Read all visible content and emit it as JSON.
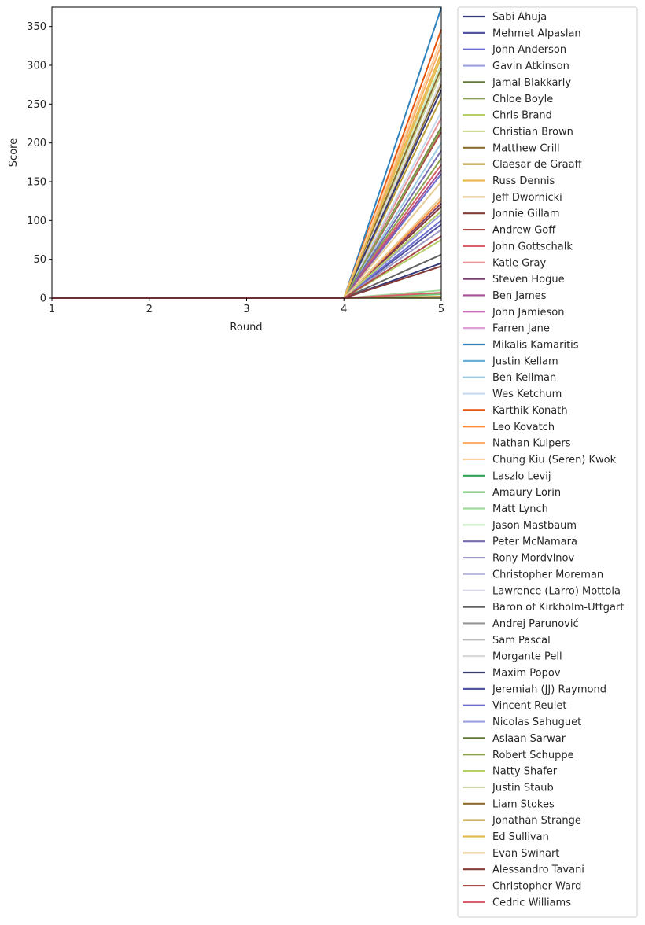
{
  "chart_data": {
    "type": "line",
    "title": "",
    "xlabel": "Round",
    "ylabel": "Score",
    "x": [
      1,
      2,
      3,
      4,
      5
    ],
    "xlim": [
      1,
      5
    ],
    "ylim": [
      0,
      375
    ],
    "xticks": [
      "1",
      "2",
      "3",
      "4",
      "5"
    ],
    "yticks": [
      "0",
      "50",
      "100",
      "150",
      "200",
      "250",
      "300",
      "350"
    ],
    "ytick_values": [
      0,
      50,
      100,
      150,
      200,
      250,
      300,
      350
    ],
    "grid": false,
    "legend_position": "outside-right",
    "series": [
      {
        "name": "Sabi Ahuja",
        "color": "#393b79",
        "values": [
          0,
          0,
          0,
          0,
          45
        ]
      },
      {
        "name": "Mehmet Alpaslan",
        "color": "#5254a3",
        "values": [
          0,
          0,
          0,
          0,
          95
        ]
      },
      {
        "name": "John Anderson",
        "color": "#6b6ecf",
        "values": [
          0,
          0,
          0,
          0,
          160
        ]
      },
      {
        "name": "Gavin Atkinson",
        "color": "#9c9ede",
        "values": [
          0,
          0,
          0,
          0,
          108
        ]
      },
      {
        "name": "Jamal Blakkarly",
        "color": "#637939",
        "values": [
          0,
          0,
          0,
          0,
          220
        ]
      },
      {
        "name": "Chloe Boyle",
        "color": "#8ca252",
        "values": [
          0,
          0,
          0,
          0,
          180
        ]
      },
      {
        "name": "Chris Brand",
        "color": "#b5cf6b",
        "values": [
          0,
          0,
          0,
          0,
          75
        ]
      },
      {
        "name": "Christian Brown",
        "color": "#cedb9c",
        "values": [
          0,
          0,
          0,
          0,
          290
        ]
      },
      {
        "name": "Matthew Crill",
        "color": "#8c6d31",
        "values": [
          0,
          0,
          0,
          0,
          275
        ]
      },
      {
        "name": "Claesar de Graaff",
        "color": "#bd9e39",
        "values": [
          0,
          0,
          0,
          0,
          258
        ]
      },
      {
        "name": "Russ Dennis",
        "color": "#e7ba52",
        "values": [
          0,
          0,
          0,
          0,
          316
        ]
      },
      {
        "name": "Jeff Dwornicki",
        "color": "#e7cb94",
        "values": [
          0,
          0,
          0,
          0,
          150
        ]
      },
      {
        "name": "Jonnie Gillam",
        "color": "#843c39",
        "values": [
          0,
          0,
          0,
          0,
          118
        ]
      },
      {
        "name": "Andrew Goff",
        "color": "#ad494a",
        "values": [
          0,
          0,
          0,
          0,
          214
        ]
      },
      {
        "name": "John Gottschalk",
        "color": "#d6616b",
        "values": [
          0,
          0,
          0,
          0,
          172
        ]
      },
      {
        "name": "Katie Gray",
        "color": "#e7969c",
        "values": [
          0,
          0,
          0,
          0,
          232
        ]
      },
      {
        "name": "Steven Hogue",
        "color": "#7b4173",
        "values": [
          0,
          0,
          0,
          0,
          122
        ]
      },
      {
        "name": "Ben James",
        "color": "#a55194",
        "values": [
          0,
          0,
          0,
          0,
          165
        ]
      },
      {
        "name": "John Jamieson",
        "color": "#ce6dbd",
        "values": [
          0,
          0,
          0,
          0,
          0
        ]
      },
      {
        "name": "Farren Jane",
        "color": "#de9ed6",
        "values": [
          0,
          0,
          0,
          0,
          0
        ]
      },
      {
        "name": "Mikalis Kamaritis",
        "color": "#3182bd",
        "values": [
          0,
          0,
          0,
          0,
          374
        ]
      },
      {
        "name": "Justin Kellam",
        "color": "#6baed6",
        "values": [
          0,
          0,
          0,
          0,
          0
        ]
      },
      {
        "name": "Ben Kellman",
        "color": "#9ecae1",
        "values": [
          0,
          0,
          0,
          0,
          200
        ]
      },
      {
        "name": "Wes Ketchum",
        "color": "#c6dbef",
        "values": [
          0,
          0,
          0,
          0,
          240
        ]
      },
      {
        "name": "Karthik Konath",
        "color": "#e6550d",
        "values": [
          0,
          0,
          0,
          0,
          346
        ]
      },
      {
        "name": "Leo Kovatch",
        "color": "#fd8d3c",
        "values": [
          0,
          0,
          0,
          0,
          126
        ]
      },
      {
        "name": "Nathan Kuipers",
        "color": "#fdae6b",
        "values": [
          0,
          0,
          0,
          0,
          326
        ]
      },
      {
        "name": "Chung Kiu (Seren) Kwok",
        "color": "#fdd0a2",
        "values": [
          0,
          0,
          0,
          0,
          334
        ]
      },
      {
        "name": "Laszlo Levij",
        "color": "#31a354",
        "values": [
          0,
          0,
          0,
          0,
          0
        ]
      },
      {
        "name": "Amaury Lorin",
        "color": "#74c476",
        "values": [
          0,
          0,
          0,
          0,
          5
        ]
      },
      {
        "name": "Matt Lynch",
        "color": "#a1d99b",
        "values": [
          0,
          0,
          0,
          0,
          10
        ]
      },
      {
        "name": "Jason Mastbaum",
        "color": "#c7e9c0",
        "values": [
          0,
          0,
          0,
          0,
          302
        ]
      },
      {
        "name": "Peter McNamara",
        "color": "#756bb1",
        "values": [
          0,
          0,
          0,
          0,
          190
        ]
      },
      {
        "name": "Rony Mordvinov",
        "color": "#9e9ac8",
        "values": [
          0,
          0,
          0,
          0,
          88
        ]
      },
      {
        "name": "Christopher Moreman",
        "color": "#bcbddc",
        "values": [
          0,
          0,
          0,
          0,
          0
        ]
      },
      {
        "name": "Lawrence (Larro) Mottola",
        "color": "#dadaeb",
        "values": [
          0,
          0,
          0,
          0,
          0
        ]
      },
      {
        "name": "Baron of Kirkholm-Uttgart",
        "color": "#636363",
        "values": [
          0,
          0,
          0,
          0,
          56
        ]
      },
      {
        "name": "Andrej Parunović",
        "color": "#969696",
        "values": [
          0,
          0,
          0,
          0,
          0
        ]
      },
      {
        "name": "Sam Pascal",
        "color": "#bdbdbd",
        "values": [
          0,
          0,
          0,
          0,
          0
        ]
      },
      {
        "name": "Morgante Pell",
        "color": "#d9d9d9",
        "values": [
          0,
          0,
          0,
          0,
          280
        ]
      },
      {
        "name": "Maxim Popov",
        "color": "#393b79",
        "values": [
          0,
          0,
          0,
          0,
          268
        ]
      },
      {
        "name": "Jeremiah (JJ) Raymond",
        "color": "#5254a3",
        "values": [
          0,
          0,
          0,
          0,
          0
        ]
      },
      {
        "name": "Vincent Reulet",
        "color": "#6b6ecf",
        "values": [
          0,
          0,
          0,
          0,
          100
        ]
      },
      {
        "name": "Nicolas Sahuguet",
        "color": "#9c9ede",
        "values": [
          0,
          0,
          0,
          0,
          0
        ]
      },
      {
        "name": "Aslaan Sarwar",
        "color": "#637939",
        "values": [
          0,
          0,
          0,
          0,
          0
        ]
      },
      {
        "name": "Robert Schuppe",
        "color": "#8ca252",
        "values": [
          0,
          0,
          0,
          0,
          218
        ]
      },
      {
        "name": "Natty Shafer",
        "color": "#b5cf6b",
        "values": [
          0,
          0,
          0,
          0,
          112
        ]
      },
      {
        "name": "Justin Staub",
        "color": "#cedb9c",
        "values": [
          0,
          0,
          0,
          0,
          0
        ]
      },
      {
        "name": "Liam Stokes",
        "color": "#8c6d31",
        "values": [
          0,
          0,
          0,
          0,
          296
        ]
      },
      {
        "name": "Jonathan Strange",
        "color": "#bd9e39",
        "values": [
          0,
          0,
          0,
          0,
          2
        ]
      },
      {
        "name": "Ed Sullivan",
        "color": "#e7ba52",
        "values": [
          0,
          0,
          0,
          0,
          310
        ]
      },
      {
        "name": "Evan Swihart",
        "color": "#e7cb94",
        "values": [
          0,
          0,
          0,
          0,
          130
        ]
      },
      {
        "name": "Alessandro Tavani",
        "color": "#843c39",
        "values": [
          0,
          0,
          0,
          0,
          41
        ]
      },
      {
        "name": "Christopher Ward",
        "color": "#ad494a",
        "values": [
          0,
          0,
          0,
          0,
          80
        ]
      },
      {
        "name": "Cedric Williams",
        "color": "#d6616b",
        "values": [
          0,
          0,
          0,
          0,
          7
        ]
      }
    ]
  }
}
